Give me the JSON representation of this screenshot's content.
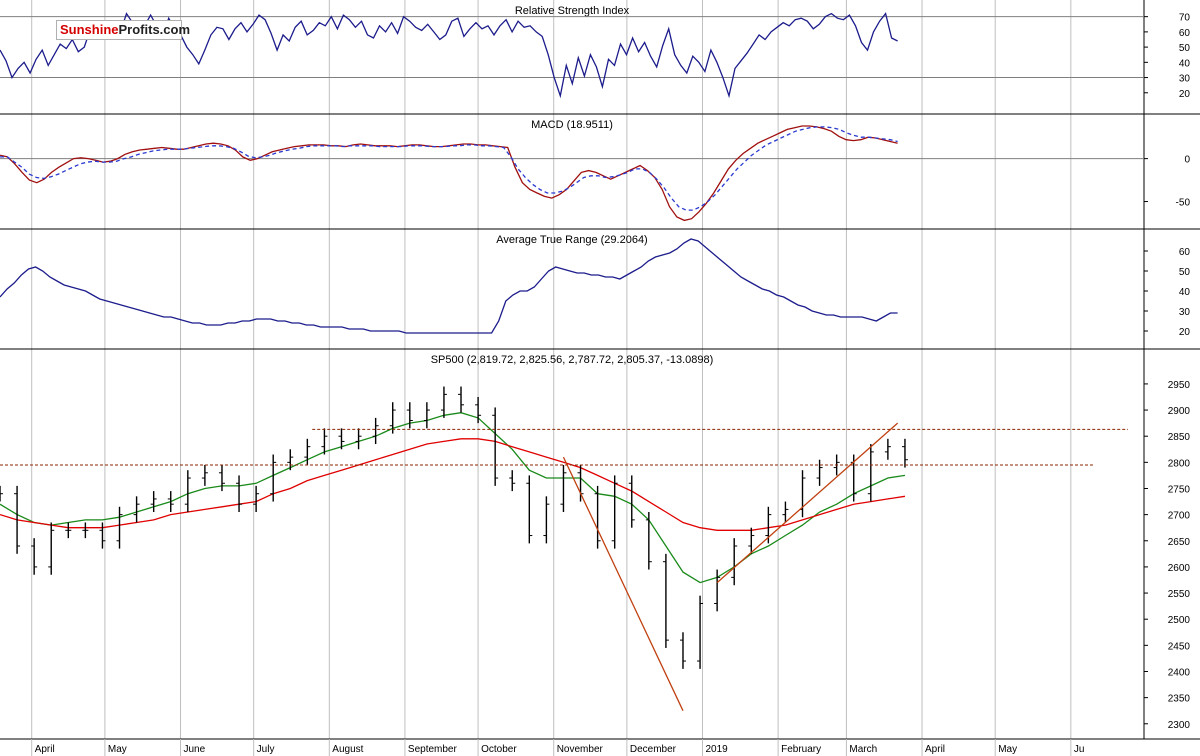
{
  "logo": {
    "part1": "Sunshine",
    "part2": "Profits.com"
  },
  "colors": {
    "price": "#000000",
    "ma_green": "#1a8a1a",
    "ma_red": "#e00000",
    "indicator": "#1c1c8c",
    "macd": "#a01010",
    "signal": "#2a3ad0",
    "level": "#8b2500",
    "trend": "#c04010",
    "grid": "#bfbfbf"
  },
  "chart_data": [
    {
      "type": "line",
      "title": "Relative Strength Index",
      "ylim": [
        10,
        77
      ],
      "ytick_labels": [
        "70",
        "60",
        "50",
        "40",
        "30",
        "20"
      ],
      "yticks": [
        70,
        60,
        50,
        40,
        30,
        20
      ],
      "hlines": [
        70,
        30
      ],
      "series": [
        {
          "values": [
            48,
            41,
            30,
            36,
            40,
            33,
            42,
            48,
            38,
            45,
            52,
            49,
            55,
            47,
            50,
            62,
            63,
            58,
            66,
            67,
            60,
            72,
            66,
            59,
            64,
            71,
            64,
            57,
            69,
            62,
            58,
            50,
            45,
            39,
            48,
            58,
            63,
            62,
            55,
            62,
            66,
            60,
            65,
            71,
            68,
            59,
            48,
            58,
            54,
            63,
            67,
            58,
            61,
            66,
            64,
            70,
            62,
            71,
            68,
            63,
            67,
            58,
            56,
            64,
            60,
            66,
            59,
            70,
            67,
            63,
            61,
            65,
            60,
            55,
            58,
            67,
            69,
            57,
            62,
            66,
            62,
            64,
            58,
            64,
            68,
            60,
            67,
            63,
            64,
            60,
            57,
            45,
            30,
            18,
            38,
            26,
            43,
            31,
            45,
            37,
            24,
            42,
            38,
            52,
            45,
            56,
            47,
            53,
            44,
            37,
            51,
            62,
            45,
            38,
            33,
            44,
            40,
            34,
            48,
            40,
            30,
            18,
            36,
            41,
            46,
            52,
            58,
            55,
            60,
            63,
            66,
            64,
            68,
            69,
            67,
            62,
            65,
            70,
            72,
            69,
            68,
            71,
            64,
            53,
            48,
            60,
            67,
            72,
            56,
            54
          ]
        }
      ]
    },
    {
      "type": "line",
      "title": "MACD (18.9511)",
      "ylim": [
        -75,
        45
      ],
      "ytick_labels": [
        "0",
        "-50"
      ],
      "yticks": [
        0,
        -50
      ],
      "hlines": [
        0
      ],
      "series": [
        {
          "values": [
            4,
            2,
            -6,
            -16,
            -25,
            -28,
            -24,
            -16,
            -10,
            -5,
            0,
            1,
            0,
            -2,
            -4,
            -3,
            0,
            5,
            8,
            10,
            11,
            12,
            13,
            12,
            11,
            11,
            13,
            15,
            17,
            18,
            17,
            15,
            10,
            2,
            -2,
            0,
            4,
            8,
            10,
            12,
            14,
            15,
            16,
            16,
            16,
            15,
            15,
            14,
            16,
            17,
            16,
            15,
            15,
            15,
            14,
            15,
            16,
            16,
            15,
            14,
            14,
            15,
            16,
            17,
            17,
            16,
            16,
            15,
            14,
            13,
            -10,
            -28,
            -36,
            -40,
            -44,
            -46,
            -42,
            -36,
            -26,
            -16,
            -14,
            -16,
            -20,
            -24,
            -20,
            -16,
            -12,
            -8,
            -14,
            -22,
            -36,
            -56,
            -68,
            -72,
            -70,
            -62,
            -52,
            -40,
            -26,
            -12,
            -2,
            6,
            12,
            18,
            22,
            26,
            30,
            34,
            36,
            38,
            38,
            37,
            35,
            32,
            26,
            22,
            21,
            22,
            25,
            24,
            22,
            20,
            18
          ]
        },
        {
          "values": [
            2,
            2,
            -4,
            -10,
            -18,
            -22,
            -23,
            -21,
            -18,
            -14,
            -10,
            -6,
            -4,
            -3,
            -4,
            -4,
            -3,
            0,
            2,
            5,
            7,
            9,
            10,
            11,
            11,
            11,
            12,
            13,
            14,
            15,
            15,
            14,
            12,
            8,
            3,
            1,
            2,
            4,
            7,
            9,
            11,
            12,
            14,
            15,
            15,
            15,
            15,
            14,
            15,
            15,
            15,
            15,
            14,
            14,
            14,
            14,
            15,
            15,
            15,
            14,
            14,
            14,
            15,
            15,
            16,
            16,
            15,
            15,
            14,
            13,
            2,
            -12,
            -22,
            -30,
            -36,
            -40,
            -40,
            -38,
            -34,
            -28,
            -22,
            -20,
            -20,
            -22,
            -21,
            -19,
            -16,
            -12,
            -12,
            -16,
            -24,
            -34,
            -46,
            -56,
            -60,
            -60,
            -56,
            -50,
            -42,
            -32,
            -22,
            -12,
            -4,
            4,
            10,
            16,
            20,
            24,
            28,
            32,
            34,
            36,
            37,
            37,
            36,
            34,
            30,
            27,
            25,
            25,
            24,
            23,
            22,
            20
          ]
        }
      ]
    },
    {
      "type": "line",
      "title": "Average True Range (29.2064)",
      "ylim": [
        14,
        68
      ],
      "ytick_labels": [
        "60",
        "50",
        "40",
        "30",
        "20"
      ],
      "yticks": [
        60,
        50,
        40,
        30,
        20
      ],
      "hlines": [],
      "series": [
        {
          "values": [
            37,
            41,
            44,
            48,
            51,
            52,
            50,
            47,
            45,
            43,
            42,
            41,
            40,
            38,
            36,
            35,
            34,
            33,
            32,
            31,
            30,
            29,
            28,
            27,
            27,
            26,
            25,
            24,
            24,
            23,
            23,
            23,
            24,
            24,
            25,
            25,
            26,
            26,
            26,
            25,
            25,
            24,
            24,
            23,
            23,
            22,
            22,
            22,
            22,
            21,
            21,
            21,
            20,
            20,
            20,
            20,
            20,
            19,
            19,
            19,
            19,
            19,
            19,
            19,
            19,
            19,
            19,
            19,
            19,
            19,
            25,
            35,
            38,
            40,
            40,
            42,
            46,
            50,
            52,
            51,
            50,
            49,
            49,
            48,
            48,
            47,
            47,
            46,
            48,
            50,
            52,
            55,
            57,
            58,
            59,
            61,
            64,
            66,
            65,
            62,
            59,
            56,
            53,
            50,
            47,
            45,
            43,
            41,
            40,
            38,
            37,
            35,
            33,
            32,
            30,
            29,
            28,
            28,
            27,
            27,
            27,
            27,
            26,
            25,
            27,
            29,
            29
          ]
        }
      ]
    },
    {
      "type": "line",
      "title": "SP500 (2,819.72, 2,825.56, 2,787.72, 2,805.37, -13.0898)",
      "ylim": [
        2290,
        2990
      ],
      "ytick_labels": [
        "2950",
        "2900",
        "2850",
        "2800",
        "2750",
        "2700",
        "2650",
        "2600",
        "2550",
        "2500",
        "2450",
        "2400",
        "2350",
        "2300"
      ],
      "yticks": [
        2950,
        2900,
        2850,
        2800,
        2750,
        2700,
        2650,
        2600,
        2550,
        2500,
        2450,
        2400,
        2350,
        2300
      ],
      "x": [
        "2018-03-19",
        "2018-03-26",
        "2018-04-02",
        "2018-04-09",
        "2018-04-16",
        "2018-04-23",
        "2018-04-30",
        "2018-05-07",
        "2018-05-14",
        "2018-05-21",
        "2018-05-28",
        "2018-06-04",
        "2018-06-11",
        "2018-06-18",
        "2018-06-25",
        "2018-07-02",
        "2018-07-09",
        "2018-07-16",
        "2018-07-23",
        "2018-07-30",
        "2018-08-06",
        "2018-08-13",
        "2018-08-20",
        "2018-08-27",
        "2018-09-03",
        "2018-09-10",
        "2018-09-17",
        "2018-09-24",
        "2018-10-01",
        "2018-10-08",
        "2018-10-15",
        "2018-10-22",
        "2018-10-29",
        "2018-11-05",
        "2018-11-12",
        "2018-11-19",
        "2018-11-26",
        "2018-12-03",
        "2018-12-10",
        "2018-12-17",
        "2018-12-24",
        "2018-12-31",
        "2019-01-07",
        "2019-01-14",
        "2019-01-21",
        "2019-01-28",
        "2019-02-04",
        "2019-02-11",
        "2019-02-18",
        "2019-02-25",
        "2019-03-04",
        "2019-03-11",
        "2019-03-18",
        "2019-03-25"
      ],
      "series": [
        {
          "name": "close",
          "values": [
            2740,
            2640,
            2600,
            2670,
            2670,
            2670,
            2650,
            2700,
            2720,
            2730,
            2720,
            2770,
            2780,
            2760,
            2720,
            2740,
            2800,
            2810,
            2830,
            2850,
            2840,
            2850,
            2870,
            2900,
            2880,
            2900,
            2930,
            2910,
            2890,
            2770,
            2760,
            2660,
            2720,
            2780,
            2740,
            2650,
            2760,
            2690,
            2610,
            2460,
            2420,
            2530,
            2580,
            2640,
            2660,
            2700,
            2710,
            2770,
            2790,
            2800,
            2740,
            2820,
            2830,
            2805
          ]
        },
        {
          "name": "ma_green",
          "values": [
            2720,
            2700,
            2685,
            2680,
            2685,
            2690,
            2690,
            2695,
            2705,
            2715,
            2725,
            2740,
            2750,
            2755,
            2755,
            2760,
            2775,
            2790,
            2805,
            2820,
            2830,
            2840,
            2850,
            2865,
            2875,
            2880,
            2890,
            2895,
            2885,
            2855,
            2825,
            2785,
            2770,
            2770,
            2770,
            2740,
            2735,
            2720,
            2690,
            2640,
            2590,
            2570,
            2580,
            2600,
            2625,
            2640,
            2660,
            2680,
            2705,
            2720,
            2740,
            2755,
            2770,
            2775
          ]
        },
        {
          "name": "ma_red",
          "values": [
            2700,
            2690,
            2685,
            2680,
            2675,
            2675,
            2675,
            2680,
            2685,
            2690,
            2700,
            2705,
            2710,
            2715,
            2720,
            2725,
            2740,
            2750,
            2765,
            2775,
            2785,
            2795,
            2805,
            2815,
            2825,
            2835,
            2840,
            2845,
            2845,
            2840,
            2830,
            2820,
            2810,
            2800,
            2790,
            2775,
            2760,
            2745,
            2725,
            2705,
            2685,
            2675,
            2670,
            2670,
            2670,
            2675,
            2680,
            2690,
            2700,
            2710,
            2720,
            2725,
            2730,
            2735
          ]
        }
      ],
      "levels": [
        2863,
        2795
      ],
      "trendlines": [
        {
          "from": [
            "2018-11-05",
            2810
          ],
          "to": [
            "2018-12-24",
            2325
          ]
        },
        {
          "from": [
            "2019-01-07",
            2570
          ],
          "to": [
            "2019-03-22",
            2875
          ]
        }
      ],
      "x_labels": [
        "April",
        "May",
        "June",
        "July",
        "August",
        "September",
        "October",
        "November",
        "December",
        "2019",
        "February",
        "March",
        "April",
        "May",
        "Ju"
      ]
    }
  ]
}
